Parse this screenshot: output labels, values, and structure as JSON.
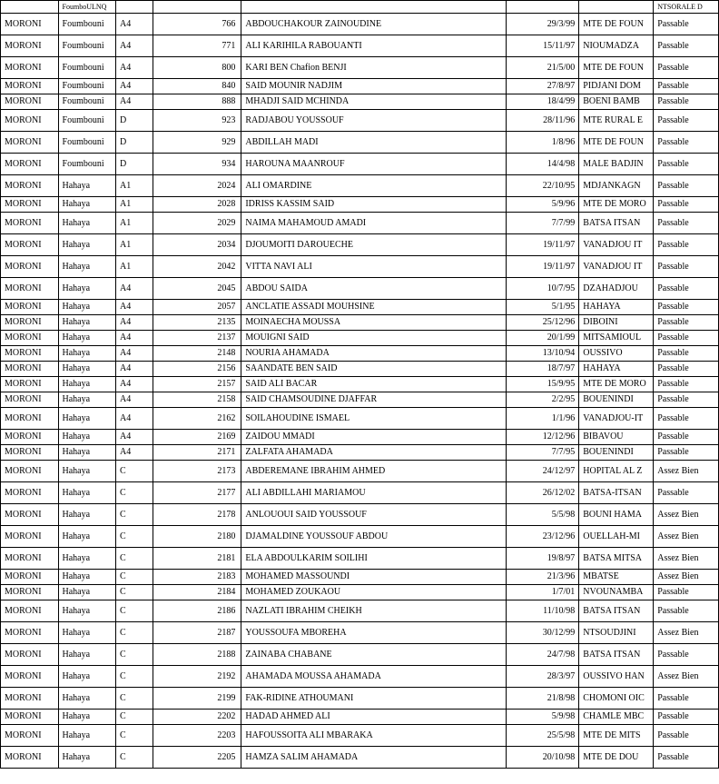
{
  "columns": [
    "region",
    "commune",
    "series",
    "num",
    "name",
    "date",
    "place",
    "mention"
  ],
  "header_row": [
    "",
    "FoumboULNQ",
    "",
    "",
    "",
    "",
    "",
    "NTSORALE D"
  ],
  "rows": [
    {
      "h": "tall",
      "region": "MORONI",
      "commune": "Foumbouni",
      "series": "A4",
      "num": "766",
      "name": "ABDOUCHAKOUR ZAINOUDINE",
      "date": "29/3/99",
      "place": "MTE DE FOUN",
      "mention": "Passable"
    },
    {
      "h": "tall",
      "region": "MORONI",
      "commune": "Foumbouni",
      "series": "A4",
      "num": "771",
      "name": "ALI KARIHILA RABOUANTI",
      "date": "15/11/97",
      "place": "NIOUMADZA",
      "mention": "Passable"
    },
    {
      "h": "tall",
      "region": "MORONI",
      "commune": "Foumbouni",
      "series": "A4",
      "num": "800",
      "name": "KARI BEN Chafion BENJI",
      "date": "21/5/00",
      "place": "MTE DE FOUN",
      "mention": "Passable"
    },
    {
      "h": "compact",
      "region": "MORONI",
      "commune": "Foumbouni",
      "series": "A4",
      "num": "840",
      "name": "SAID MOUNIR NADJIM",
      "date": "27/8/97",
      "place": "PIDJANI DOM",
      "mention": "Passable"
    },
    {
      "h": "compact",
      "region": "MORONI",
      "commune": "Foumbouni",
      "series": "A4",
      "num": "888",
      "name": "MHADJI SAID MCHINDA",
      "date": "18/4/99",
      "place": "BOENI BAMB",
      "mention": "Passable"
    },
    {
      "h": "tall",
      "region": "MORONI",
      "commune": "Foumbouni",
      "series": "D",
      "num": "923",
      "name": "RADJABOU YOUSSOUF",
      "date": "28/11/96",
      "place": "MTE RURAL E",
      "mention": "Passable"
    },
    {
      "h": "tall",
      "region": "MORONI",
      "commune": "Foumbouni",
      "series": "D",
      "num": "929",
      "name": "ABDILLAH MADI",
      "date": "1/8/96",
      "place": "MTE DE FOUN",
      "mention": "Passable"
    },
    {
      "h": "tall",
      "region": "MORONI",
      "commune": "Foumbouni",
      "series": "D",
      "num": "934",
      "name": "HAROUNA MAANROUF",
      "date": "14/4/98",
      "place": "MALE BADJIN",
      "mention": "Passable"
    },
    {
      "h": "tall",
      "region": "MORONI",
      "commune": "Hahaya",
      "series": "A1",
      "num": "2024",
      "name": "ALI OMARDINE",
      "date": "22/10/95",
      "place": "MDJANKAGN",
      "mention": "Passable"
    },
    {
      "h": "compact",
      "region": "MORONI",
      "commune": "Hahaya",
      "series": "A1",
      "num": "2028",
      "name": "IDRISS KASSIM SAID",
      "date": "5/9/96",
      "place": "MTE DE MORO",
      "mention": "Passable"
    },
    {
      "h": "tall",
      "region": "MORONI",
      "commune": "Hahaya",
      "series": "A1",
      "num": "2029",
      "name": "NAIMA MAHAMOUD AMADI",
      "date": "7/7/99",
      "place": "BATSA ITSAN",
      "mention": "Passable"
    },
    {
      "h": "tall",
      "region": "MORONI",
      "commune": "Hahaya",
      "series": "A1",
      "num": "2034",
      "name": "DJOUMOITI DAROUECHE",
      "date": "19/11/97",
      "place": "VANADJOU IT",
      "mention": "Passable"
    },
    {
      "h": "tall",
      "region": "MORONI",
      "commune": "Hahaya",
      "series": "A1",
      "num": "2042",
      "name": "VITTA NAVI ALI",
      "date": "19/11/97",
      "place": "VANADJOU IT",
      "mention": "Passable"
    },
    {
      "h": "tall",
      "region": "MORONI",
      "commune": "Hahaya",
      "series": "A4",
      "num": "2045",
      "name": "ABDOU SAIDA",
      "date": "10/7/95",
      "place": "DZAHADJOU",
      "mention": "Passable"
    },
    {
      "h": "compact",
      "region": "MORONI",
      "commune": "Hahaya",
      "series": "A4",
      "num": "2057",
      "name": "ANCLATIE ASSADI MOUHSINE",
      "date": "5/1/95",
      "place": "HAHAYA",
      "mention": "Passable"
    },
    {
      "h": "compact",
      "region": "MORONI",
      "commune": "Hahaya",
      "series": "A4",
      "num": "2135",
      "name": "MOINAECHA MOUSSA",
      "date": "25/12/96",
      "place": "DIBOINI",
      "mention": "Passable"
    },
    {
      "h": "compact",
      "region": "MORONI",
      "commune": "Hahaya",
      "series": "A4",
      "num": "2137",
      "name": "MOUIGNI SAID",
      "date": "20/1/99",
      "place": "MITSAMIOUL",
      "mention": "Passable"
    },
    {
      "h": "compact",
      "region": "MORONI",
      "commune": "Hahaya",
      "series": "A4",
      "num": "2148",
      "name": "NOURIA AHAMADA",
      "date": "13/10/94",
      "place": "OUSSIVO",
      "mention": "Passable"
    },
    {
      "h": "compact",
      "region": "MORONI",
      "commune": "Hahaya",
      "series": "A4",
      "num": "2156",
      "name": "SAANDATE BEN SAID",
      "date": "18/7/97",
      "place": "HAHAYA",
      "mention": "Passable"
    },
    {
      "h": "compact",
      "region": "MORONI",
      "commune": "Hahaya",
      "series": "A4",
      "num": "2157",
      "name": "SAID ALI BACAR",
      "date": "15/9/95",
      "place": "MTE DE MORO",
      "mention": "Passable"
    },
    {
      "h": "compact",
      "region": "MORONI",
      "commune": "Hahaya",
      "series": "A4",
      "num": "2158",
      "name": "SAID CHAMSOUDINE DJAFFAR",
      "date": "2/2/95",
      "place": "BOUENINDI",
      "mention": "Passable"
    },
    {
      "h": "tall",
      "region": "MORONI",
      "commune": "Hahaya",
      "series": "A4",
      "num": "2162",
      "name": "SOILAHOUDINE ISMAEL",
      "date": "1/1/96",
      "place": "VANADJOU-IT",
      "mention": "Passable"
    },
    {
      "h": "compact",
      "region": "MORONI",
      "commune": "Hahaya",
      "series": "A4",
      "num": "2169",
      "name": "ZAIDOU MMADI",
      "date": "12/12/96",
      "place": "BIBAVOU",
      "mention": "Passable"
    },
    {
      "h": "compact",
      "region": "MORONI",
      "commune": "Hahaya",
      "series": "A4",
      "num": "2171",
      "name": "ZALFATA AHAMADA",
      "date": "7/7/95",
      "place": "BOUENINDI",
      "mention": "Passable"
    },
    {
      "h": "tall",
      "region": "MORONI",
      "commune": "Hahaya",
      "series": "C",
      "num": "2173",
      "name": "ABDEREMANE IBRAHIM AHMED",
      "date": "24/12/97",
      "place": "HOPITAL AL Z",
      "mention": "Assez Bien"
    },
    {
      "h": "tall",
      "region": "MORONI",
      "commune": "Hahaya",
      "series": "C",
      "num": "2177",
      "name": "ALI ABDILLAHI MARIAMOU",
      "date": "26/12/02",
      "place": "BATSA-ITSAN",
      "mention": "Passable"
    },
    {
      "h": "tall",
      "region": "MORONI",
      "commune": "Hahaya",
      "series": "C",
      "num": "2178",
      "name": "ANLOUOUI SAID YOUSSOUF",
      "date": "5/5/98",
      "place": "BOUNI HAMA",
      "mention": "Assez Bien"
    },
    {
      "h": "tall",
      "region": "MORONI",
      "commune": "Hahaya",
      "series": "C",
      "num": "2180",
      "name": "DJAMALDINE YOUSSOUF ABDOU",
      "date": "23/12/96",
      "place": "OUELLAH-MI",
      "mention": "Assez Bien"
    },
    {
      "h": "tall",
      "region": "MORONI",
      "commune": "Hahaya",
      "series": "C",
      "num": "2181",
      "name": "ELA ABDOULKARIM SOILIHI",
      "date": "19/8/97",
      "place": "BATSA MITSA",
      "mention": "Assez Bien"
    },
    {
      "h": "compact",
      "region": "MORONI",
      "commune": "Hahaya",
      "series": "C",
      "num": "2183",
      "name": "MOHAMED MASSOUNDI",
      "date": "21/3/96",
      "place": "MBATSE",
      "mention": "Assez Bien"
    },
    {
      "h": "compact",
      "region": "MORONI",
      "commune": "Hahaya",
      "series": "C",
      "num": "2184",
      "name": "MOHAMED ZOUKAOU",
      "date": "1/7/01",
      "place": "NVOUNAMBA",
      "mention": "Passable"
    },
    {
      "h": "tall",
      "region": "MORONI",
      "commune": "Hahaya",
      "series": "C",
      "num": "2186",
      "name": "NAZLATI IBRAHIM CHEIKH",
      "date": "11/10/98",
      "place": "BATSA ITSAN",
      "mention": "Passable"
    },
    {
      "h": "tall",
      "region": "MORONI",
      "commune": "Hahaya",
      "series": "C",
      "num": "2187",
      "name": "YOUSSOUFA MBOREHA",
      "date": "30/12/99",
      "place": "NTSOUDJINI",
      "mention": "Assez Bien"
    },
    {
      "h": "tall",
      "region": "MORONI",
      "commune": "Hahaya",
      "series": "C",
      "num": "2188",
      "name": "ZAINABA CHABANE",
      "date": "24/7/98",
      "place": "BATSA ITSAN",
      "mention": "Passable"
    },
    {
      "h": "tall",
      "region": "MORONI",
      "commune": "Hahaya",
      "series": "C",
      "num": "2192",
      "name": "AHAMADA MOUSSA AHAMADA",
      "date": "28/3/97",
      "place": "OUSSIVO HAN",
      "mention": "Assez Bien"
    },
    {
      "h": "tall",
      "region": "MORONI",
      "commune": "Hahaya",
      "series": "C",
      "num": "2199",
      "name": "FAK-RIDINE ATHOUMANI",
      "date": "21/8/98",
      "place": "CHOMONI OIC",
      "mention": "Passable"
    },
    {
      "h": "compact",
      "region": "MORONI",
      "commune": "Hahaya",
      "series": "C",
      "num": "2202",
      "name": "HADAD AHMED ALI",
      "date": "5/9/98",
      "place": "CHAMLE MBC",
      "mention": "Passable"
    },
    {
      "h": "tall",
      "region": "MORONI",
      "commune": "Hahaya",
      "series": "C",
      "num": "2203",
      "name": "HAFOUSSOITA ALI MBARAKA",
      "date": "25/5/98",
      "place": "MTE DE MITS",
      "mention": "Passable"
    },
    {
      "h": "tall",
      "region": "MORONI",
      "commune": "Hahaya",
      "series": "C",
      "num": "2205",
      "name": "HAMZA SALIM AHAMADA",
      "date": "20/10/98",
      "place": "MTE DE DOU",
      "mention": "Passable"
    }
  ]
}
